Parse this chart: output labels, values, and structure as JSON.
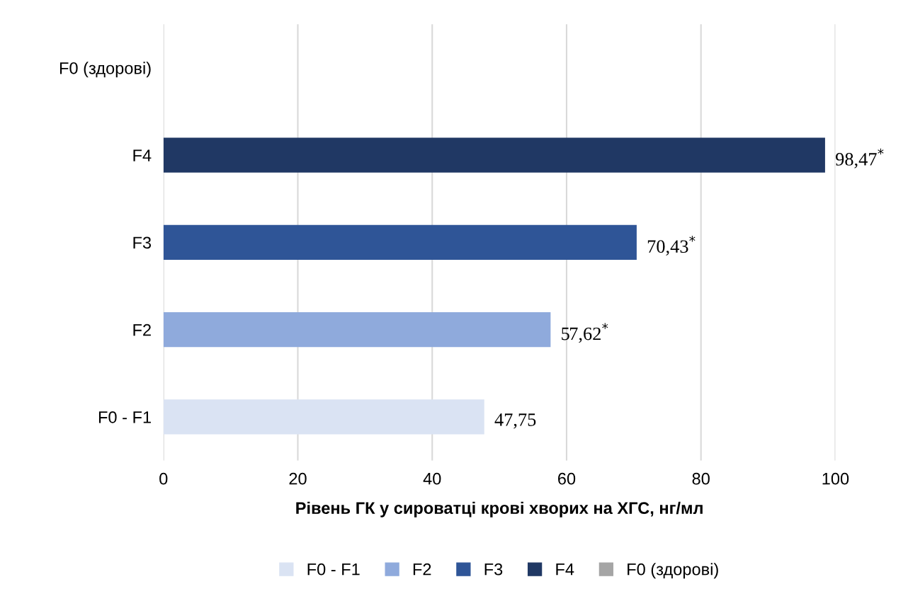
{
  "chart_data": {
    "type": "bar",
    "orientation": "horizontal",
    "xlabel": "Рівень ГК у сироватці крові хворих на ХГС, нг/мл",
    "categories": [
      "F0 (здорові)",
      "F4",
      "F3",
      "F2",
      "F0 - F1"
    ],
    "series": [
      {
        "name": "F0 - F1",
        "color": "#dae3f3",
        "values": [
          null,
          null,
          null,
          null,
          47.75
        ],
        "value_labels": [
          null,
          null,
          null,
          null,
          "47,75"
        ]
      },
      {
        "name": "F2",
        "color": "#8faadc",
        "values": [
          null,
          null,
          null,
          57.62,
          null
        ],
        "value_labels": [
          null,
          null,
          null,
          "57,62$^{*}$",
          null
        ]
      },
      {
        "name": "F3",
        "color": "#2f5597",
        "values": [
          null,
          null,
          70.43,
          null,
          null
        ],
        "value_labels": [
          null,
          null,
          "70,43$^{*}$",
          null,
          null
        ]
      },
      {
        "name": "F4",
        "color": "#203864",
        "values": [
          null,
          98.47,
          null,
          null,
          null
        ],
        "value_labels": [
          null,
          "98,47$^{*}$",
          null,
          null,
          null
        ]
      },
      {
        "name": "F0 (здорові)",
        "color": "#a5a5a5",
        "values": [
          null,
          null,
          null,
          null,
          null
        ]
      }
    ],
    "xlim": [
      0,
      100
    ],
    "xticks": [
      0,
      20,
      40,
      60,
      80,
      100
    ],
    "grid": "x",
    "legend": "bottom"
  }
}
